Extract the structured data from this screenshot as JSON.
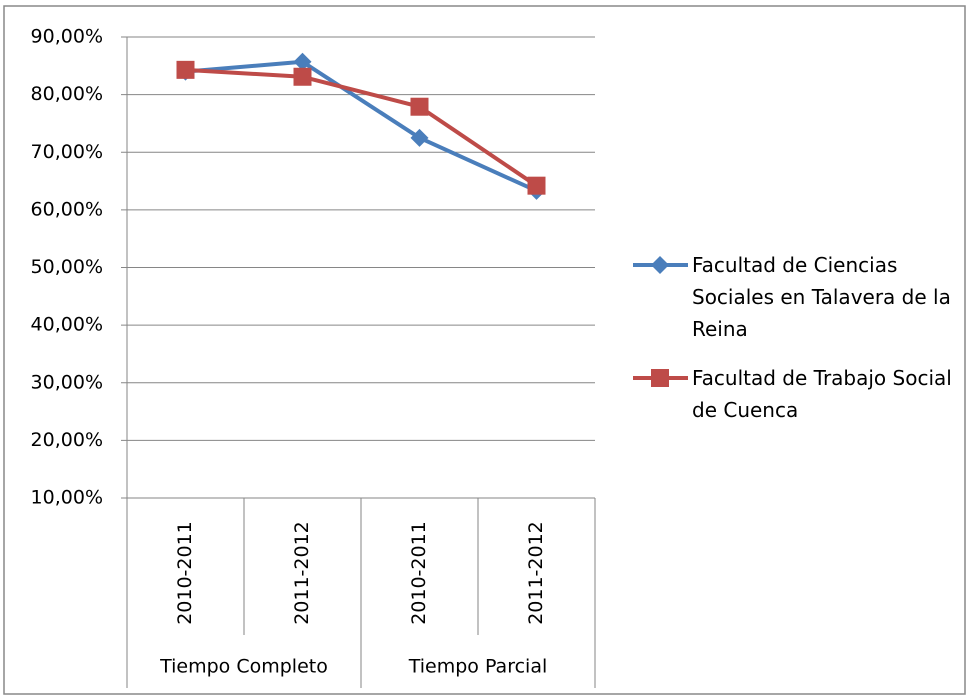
{
  "chart_data": {
    "type": "line",
    "category_groups": [
      {
        "name": "Tiempo Completo",
        "categories": [
          "2010-2011",
          "2011-2012"
        ]
      },
      {
        "name": "Tiempo Parcial",
        "categories": [
          "2010-2011",
          "2011-2012"
        ]
      }
    ],
    "series": [
      {
        "name": "Facultad de Ciencias Sociales en Talavera de la Reina",
        "color": "#4a7ebb",
        "marker": "diamond",
        "values": [
          84.0,
          85.7,
          72.5,
          63.3
        ]
      },
      {
        "name": "Facultad de Trabajo Social de Cuenca",
        "color": "#be4b48",
        "marker": "square",
        "values": [
          84.3,
          83.1,
          77.9,
          64.2
        ]
      }
    ],
    "ylim": [
      10,
      90
    ],
    "yticks": [
      {
        "value": 10,
        "label": "10,00%"
      },
      {
        "value": 20,
        "label": "20,00%"
      },
      {
        "value": 30,
        "label": "30,00%"
      },
      {
        "value": 40,
        "label": "40,00%"
      },
      {
        "value": 50,
        "label": "50,00%"
      },
      {
        "value": 60,
        "label": "60,00%"
      },
      {
        "value": 70,
        "label": "70,00%"
      },
      {
        "value": 80,
        "label": "80,00%"
      },
      {
        "value": 90,
        "label": "90,00%"
      }
    ],
    "grid": true,
    "legend": "right"
  }
}
